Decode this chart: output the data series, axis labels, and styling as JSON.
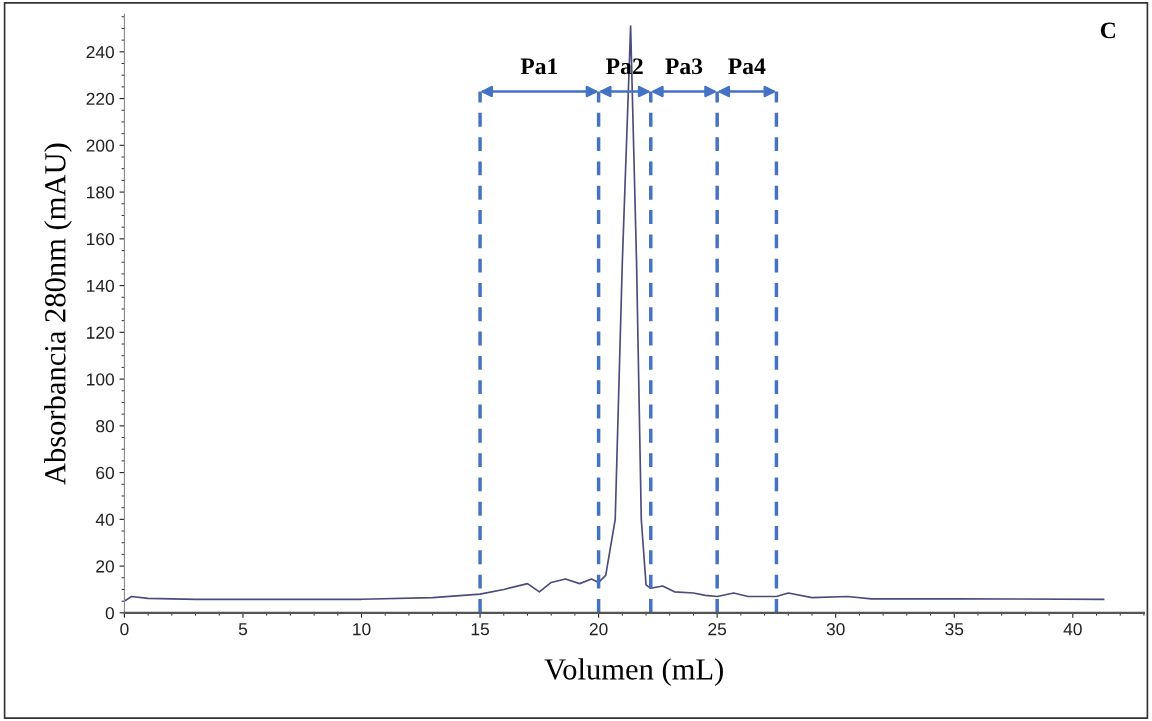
{
  "chart_data": {
    "type": "line",
    "xlabel": "Volumen (mL)",
    "ylabel": "Absorbancia 280nm (mAU)",
    "x": [
      0,
      0.3,
      1,
      3,
      10,
      13,
      15,
      16,
      17,
      17.5,
      18,
      18.6,
      19.2,
      19.7,
      20,
      20.3,
      20.7,
      21,
      21.35,
      21.6,
      21.8,
      22,
      22.2,
      22.7,
      23.2,
      24,
      24.5,
      25,
      25.7,
      26.3,
      27.5,
      28,
      29,
      30.5,
      31.5,
      35,
      41.3
    ],
    "series": [
      {
        "color": "#4b4b7d",
        "values": [
          5,
          7,
          6.2,
          5.8,
          5.8,
          6.5,
          8,
          10,
          12.5,
          9,
          13,
          14.5,
          12.5,
          14.5,
          13,
          16,
          40,
          150,
          251,
          150,
          40,
          12,
          10.5,
          11.5,
          9,
          8.5,
          7.5,
          7,
          8.5,
          7,
          7,
          8.5,
          6.5,
          7,
          6,
          6,
          5.8
        ]
      }
    ],
    "xlim": [
      0,
      43
    ],
    "ylim": [
      0,
      256
    ],
    "xticks": [
      0,
      5,
      10,
      15,
      20,
      25,
      30,
      35,
      40
    ],
    "yticks": [
      0,
      20,
      40,
      60,
      80,
      100,
      120,
      140,
      160,
      180,
      200,
      220,
      240
    ],
    "grid": false,
    "legend": false,
    "marker": "none",
    "line_style": "solid",
    "ref_lines": [
      {
        "axis": "x",
        "value": 15,
        "label": null,
        "color": "#4472c4",
        "line_style": "dashed"
      },
      {
        "axis": "x",
        "value": 20,
        "label": null,
        "color": "#4472c4",
        "line_style": "dashed"
      },
      {
        "axis": "x",
        "value": 22.2,
        "label": null,
        "color": "#4472c4",
        "line_style": "dashed"
      },
      {
        "axis": "x",
        "value": 25,
        "label": null,
        "color": "#4472c4",
        "line_style": "dashed"
      },
      {
        "axis": "x",
        "value": 27.5,
        "label": null,
        "color": "#4472c4",
        "line_style": "dashed"
      }
    ],
    "annotations": [
      {
        "text": "Pa1",
        "x": 15,
        "y": 223
      },
      {
        "text": "Pa2",
        "x": 20,
        "y": 223
      },
      {
        "text": "Pa3",
        "x": 22.2,
        "y": 223
      },
      {
        "text": "Pa4",
        "x": 25,
        "y": 223
      },
      "C"
    ]
  }
}
